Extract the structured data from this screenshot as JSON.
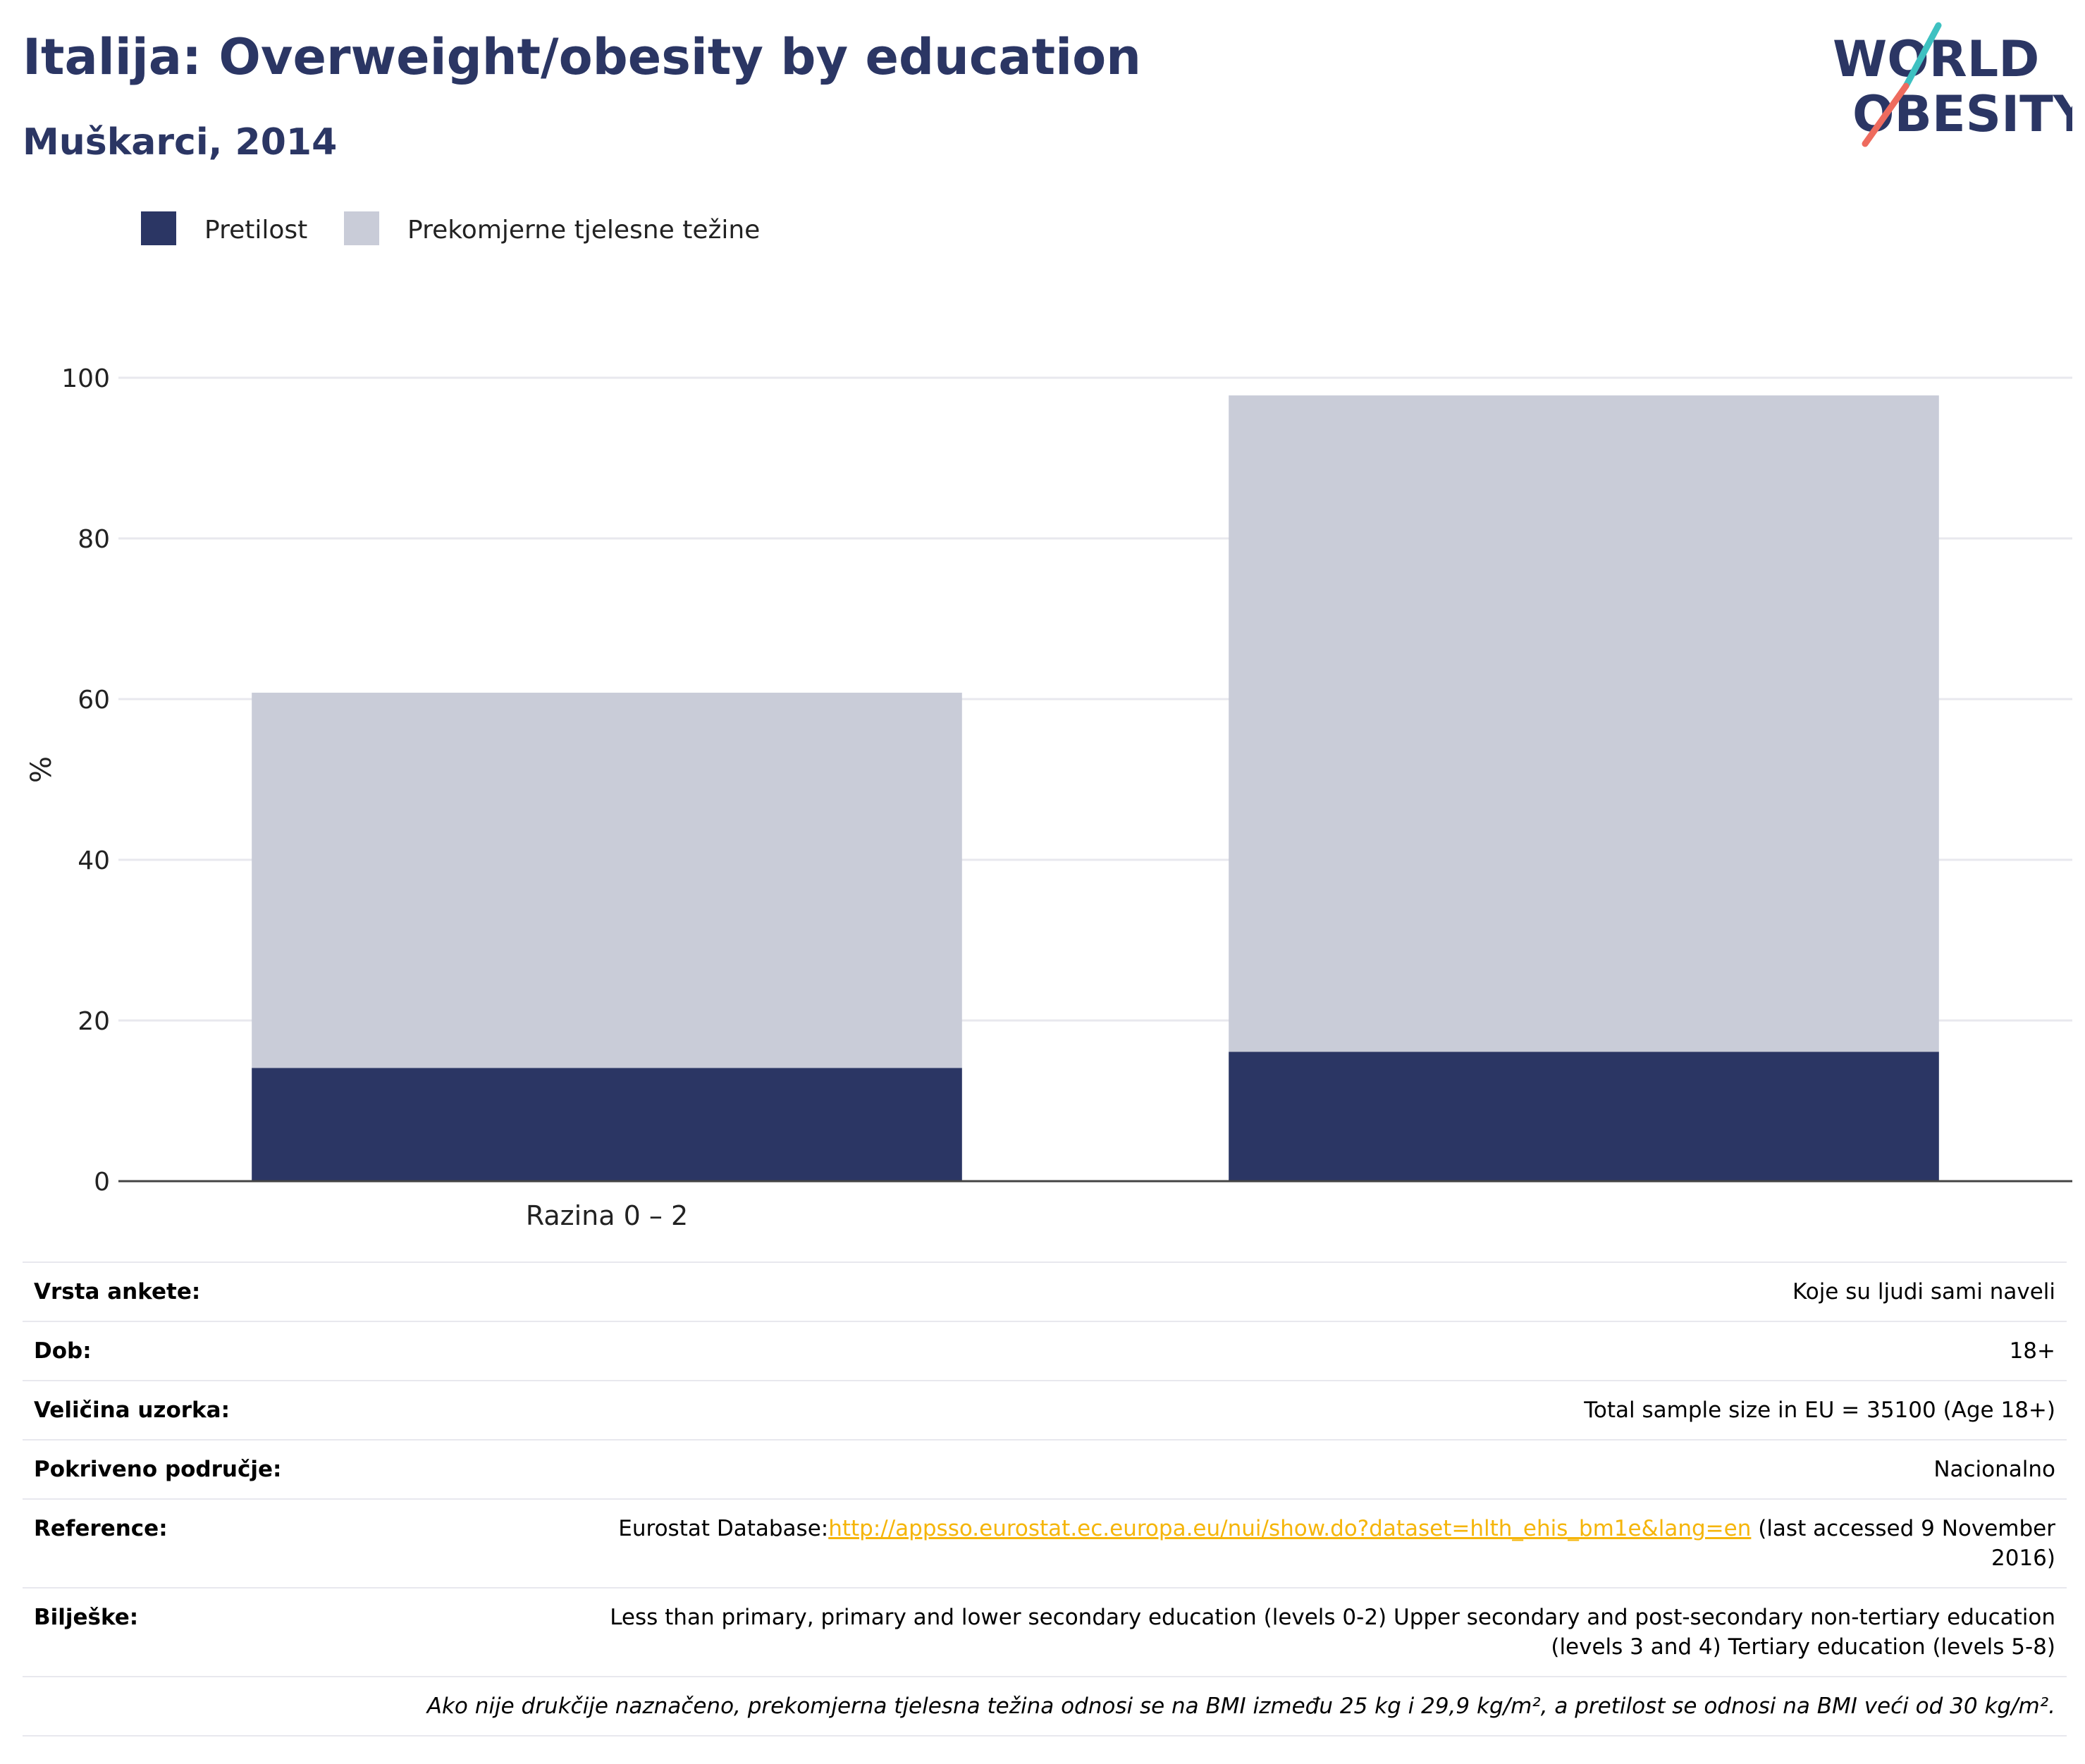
{
  "header": {
    "title": "Italija: Overweight/obesity by education",
    "subtitle": "Muškarci, 2014"
  },
  "logo": {
    "line1": "WORLD",
    "line2": "OBESITY",
    "colors": {
      "text": "#2b3664",
      "slash_teal": "#3ec1c1",
      "slash_coral": "#ee6b5e"
    }
  },
  "colors": {
    "obesity": "#2b3664",
    "overweight": "#c9ccd8",
    "grid": "#e8e8ee",
    "axis": "#444444",
    "link": "#f5b50a"
  },
  "chart_data": {
    "type": "bar",
    "stacked": true,
    "categories": [
      "Razina 0 – 2",
      ""
    ],
    "series": [
      {
        "name": "Pretilost",
        "color": "#2b3664",
        "values": [
          14.1,
          16.1
        ]
      },
      {
        "name": "Prekomjerne tjelesne težine",
        "color": "#c9ccd8",
        "values": [
          46.7,
          81.7
        ]
      }
    ],
    "ylabel": "%",
    "ylim": [
      0,
      100
    ],
    "yticks": [
      0,
      20,
      40,
      60,
      80,
      100
    ],
    "grid": true,
    "legend_position": "top-left"
  },
  "info": {
    "survey_type_label": "Vrsta ankete:",
    "survey_type": "Koje su ljudi sami naveli",
    "age_label": "Dob:",
    "age": "18+",
    "sample_label": "Veličina uzorka:",
    "sample": "Total sample size in EU = 35100 (Age 18+)",
    "coverage_label": "Pokriveno područje:",
    "coverage": "Nacionalno",
    "reference_label": "Reference:",
    "reference_prefix": "Eurostat Database:",
    "reference_link": "http://appsso.eurostat.ec.europa.eu/nui/show.do?dataset=hlth_ehis_bm1e&lang=en",
    "reference_suffix": " (last accessed 9 November 2016)",
    "notes_label": "Bilješke:",
    "notes": "Less than primary, primary and lower secondary education (levels 0-2) Upper secondary and post-secondary non-tertiary education (levels 3 and 4) Tertiary education (levels 5-8)",
    "footnote": "Ako nije drukčije naznačeno, prekomjerna tjelesna težina odnosi se na BMI između 25 kg i 29,9 kg/m², a pretilost se odnosi na BMI veći od 30 kg/m²."
  }
}
